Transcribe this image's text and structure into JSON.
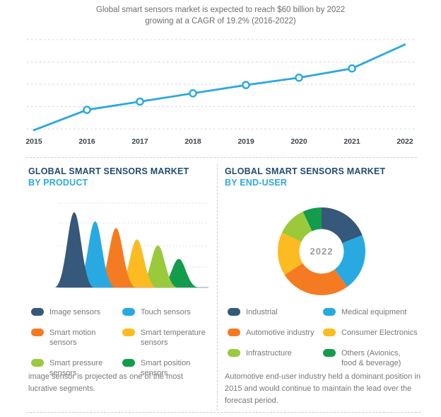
{
  "title": {
    "line1": "Global smart sensors market is expected to reach $60 billion by 2022",
    "line2": "growing at a CAGR of 19.2% (2016-2022)"
  },
  "colors": {
    "navy": "#36587A",
    "sky_blue": "#29A9E1",
    "orange": "#F47B21",
    "yellow": "#FCBB21",
    "light_green": "#9ACA3C",
    "dark_green": "#129C4B",
    "trend_line": "#29A8DF",
    "grid": "#D4D4D4",
    "baseline": "#C9CCD0",
    "body_text": "#77787B",
    "heading_navy": "#234C72",
    "heading_blue": "#2CA9E0",
    "year_label": "#3E444D",
    "donut_center_text": "#9B9C9E"
  },
  "chart_data": [
    {
      "id": "market-growth",
      "type": "line",
      "title": "Global smart sensors market is expected to reach $60 billion by 2022 growing at a CAGR of 19.2% (2016-2022)",
      "x": [
        "2015",
        "2016",
        "2017",
        "2018",
        "2019",
        "2020",
        "2021",
        "2022"
      ],
      "values_usd_billion_est": [
        17.6,
        21.0,
        25.0,
        29.8,
        35.6,
        42.4,
        50.5,
        60.0
      ],
      "y_fraction_of_plot_height": [
        0.04,
        0.26,
        0.35,
        0.44,
        0.53,
        0.61,
        0.71,
        0.97
      ],
      "marker_indexes": [
        1,
        2,
        3,
        4,
        5,
        6
      ],
      "marker_style": "open-circle",
      "gridline_count": 5,
      "grid_style": "horizontal-dashed",
      "y_axis_labels": "none",
      "line_color": "#29A8DF"
    },
    {
      "id": "by-product",
      "type": "area",
      "subtype": "stylized-bell-peaks",
      "title": "GLOBAL SMART SENSORS MARKET BY PRODUCT",
      "categories": [
        "Image sensors",
        "Touch sensors",
        "Smart motion sensors",
        "Smart temperature sensors",
        "Smart pressure sensors",
        "Smart position sensors"
      ],
      "relative_heights": [
        1.0,
        0.88,
        0.79,
        0.64,
        0.56,
        0.38
      ],
      "colors": [
        "#36587A",
        "#29A9E1",
        "#F47B21",
        "#FCBB21",
        "#9ACA3C",
        "#129C4B"
      ],
      "gridline_count": 4,
      "grid_style": "horizontal-dotted",
      "legend_position": "below"
    },
    {
      "id": "by-end-user",
      "type": "pie",
      "subtype": "donut",
      "title": "GLOBAL SMART SENSORS MARKET BY END-USER",
      "center_label": "2022",
      "categories": [
        "Industrial",
        "Medical equipment",
        "Automotive industry",
        "Consumer Electronics",
        "Infrastructure",
        "Others (Avionics, food & beverage)"
      ],
      "values_pct_est": [
        19,
        21,
        26,
        16,
        11,
        7
      ],
      "start_angle_deg": 0,
      "direction": "clockwise",
      "colors": [
        "#36587A",
        "#29A9E1",
        "#F47B21",
        "#FCBB21",
        "#9ACA3C",
        "#129C4B"
      ],
      "legend_position": "below"
    }
  ],
  "panels": {
    "product": {
      "heading_line1": "GLOBAL SMART SENSORS MARKET",
      "heading_line2": "BY PRODUCT",
      "legend": [
        {
          "label": "Image sensors",
          "color": "#36587A"
        },
        {
          "label": "Touch sensors",
          "color": "#29A9E1"
        },
        {
          "label": "Smart motion sensors",
          "color": "#F47B21"
        },
        {
          "label": "Smart temperature\nsensors",
          "color": "#FCBB21"
        },
        {
          "label": "Smart pressure sensors",
          "color": "#9ACA3C"
        },
        {
          "label": "Smart position sensors",
          "color": "#129C4B"
        }
      ],
      "caption": "image sensor  is projected as one of the most lucrative segments."
    },
    "end_user": {
      "heading_line1": "GLOBAL SMART SENSORS MARKET",
      "heading_line2": "BY END-USER",
      "legend": [
        {
          "label": "Industrial",
          "color": "#36587A"
        },
        {
          "label": "Medical equipment",
          "color": "#29A9E1"
        },
        {
          "label": "Automotive industry",
          "color": "#F47B21"
        },
        {
          "label": "Consumer Electronics",
          "color": "#FCBB21"
        },
        {
          "label": "Infrastructure",
          "color": "#9ACA3C"
        },
        {
          "label": "Others (Avionics,\nfood & beverage)",
          "color": "#129C4B"
        }
      ],
      "caption": "Automotive end-user industry  held a dominant position in 2015 and would continue to maintain the lead over the forecast period."
    }
  }
}
